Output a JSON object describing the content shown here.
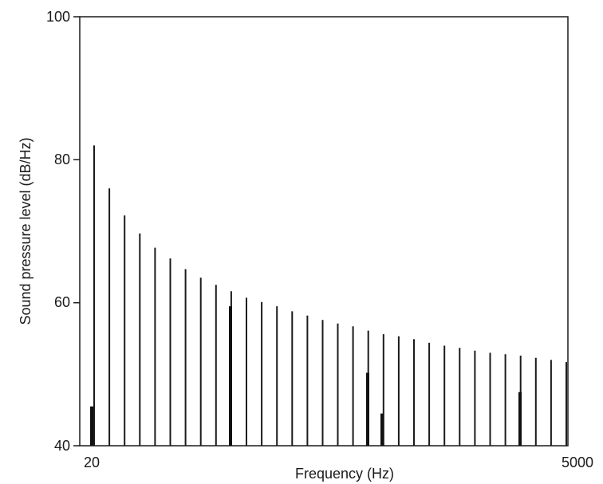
{
  "chart_data": {
    "type": "bar",
    "title": "",
    "xlabel": "Frequency (Hz)",
    "ylabel": "Sound pressure level (dB/Hz)",
    "xlim": [
      20,
      5000
    ],
    "ylim": [
      40,
      100
    ],
    "grid": false,
    "x_ticks": [
      "20",
      "5000"
    ],
    "y_ticks": [
      "100",
      "80",
      "60",
      "40"
    ],
    "series": [
      {
        "values": [
          82,
          76,
          72.2,
          69.7,
          67.7,
          66.2,
          64.7,
          63.5,
          62.5,
          61.6,
          60.7,
          60.1,
          59.5,
          58.8,
          58.2,
          57.6,
          57.1,
          56.7,
          56.1,
          55.6,
          55.3,
          54.9,
          54.4,
          54.0,
          53.7,
          53.3,
          53.0,
          52.8,
          52.6,
          52.3,
          52.0,
          51.7
        ]
      },
      {
        "values": [
          45.5,
          59.5,
          50.2,
          44.5,
          47.5
        ]
      }
    ]
  }
}
